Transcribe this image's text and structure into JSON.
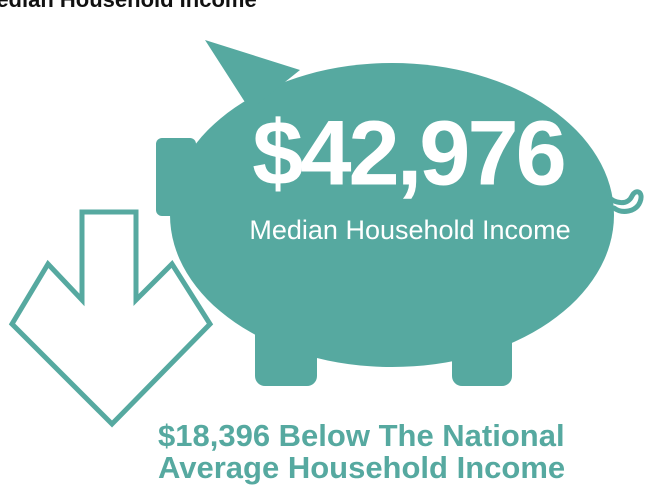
{
  "header": {
    "title": "Median Household Income"
  },
  "income": {
    "amount": "$42,976",
    "label": "Median Household Income"
  },
  "comparison": {
    "lines": [
      "$18,396 Below The National",
      "Average Household Income"
    ]
  }
}
